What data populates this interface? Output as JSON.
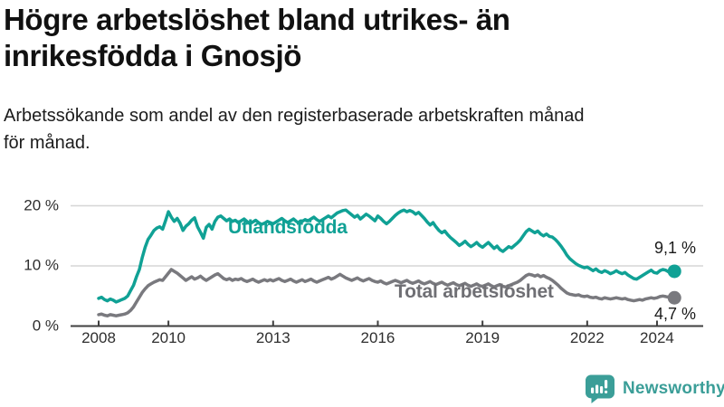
{
  "header": {
    "title": "Högre arbetslöshet bland utrikes- än\ninrikesfödda i Gnosjö",
    "subtitle": "Arbetssökande som andel av den registerbaserade arbetskraften månad\nför månad."
  },
  "chart_data": {
    "type": "line",
    "x_start_year": 2008,
    "x_step_months": 1,
    "x_tick_years": [
      2008,
      2010,
      2013,
      2016,
      2019,
      2022,
      2024
    ],
    "x_tick_labels": [
      "2008",
      "2010",
      "2013",
      "2016",
      "2019",
      "2022",
      "2024"
    ],
    "y_ticks": [
      {
        "value": 0,
        "label": "0 %"
      },
      {
        "value": 10,
        "label": "10 %"
      },
      {
        "value": 20,
        "label": "20 %"
      }
    ],
    "ylim": [
      0,
      21
    ],
    "grid": "horizontal",
    "colors": {
      "grid": "#d6d6d6",
      "axis": "#3f3f3f",
      "tick_text": "#2e2e2e",
      "value_text": "#1a1a1a"
    },
    "series": [
      {
        "name": "Utlandsfödda",
        "color": "#10a195",
        "label_color": "#10a195",
        "end_label": "9,1 %",
        "end_value": 9.1,
        "values": [
          4.6,
          4.8,
          4.4,
          4.2,
          4.5,
          4.3,
          4.0,
          4.2,
          4.4,
          4.6,
          5.0,
          5.9,
          6.8,
          8.2,
          9.4,
          11.4,
          13.1,
          14.4,
          15.1,
          15.9,
          16.3,
          16.5,
          16.1,
          17.5,
          19.0,
          18.1,
          17.4,
          17.9,
          17.1,
          15.9,
          16.6,
          17.0,
          17.6,
          18.0,
          16.5,
          15.6,
          14.6,
          16.4,
          16.9,
          16.1,
          17.4,
          18.1,
          18.3,
          17.9,
          17.5,
          17.8,
          17.4,
          17.6,
          17.2,
          17.5,
          17.8,
          17.4,
          17.0,
          17.3,
          17.6,
          17.2,
          16.9,
          17.1,
          17.4,
          17.2,
          17.0,
          17.3,
          17.6,
          17.9,
          17.5,
          17.2,
          17.5,
          17.8,
          17.4,
          17.1,
          17.4,
          17.7,
          17.5,
          17.8,
          18.1,
          17.7,
          17.4,
          17.7,
          18.0,
          18.3,
          18.0,
          18.4,
          18.8,
          19.0,
          19.2,
          19.3,
          18.9,
          18.5,
          18.1,
          18.4,
          17.8,
          18.2,
          18.6,
          18.3,
          17.9,
          17.5,
          18.3,
          17.9,
          17.4,
          17.0,
          17.4,
          17.9,
          18.4,
          18.8,
          19.1,
          19.3,
          19.0,
          19.2,
          19.0,
          18.6,
          18.9,
          18.4,
          17.9,
          17.3,
          16.8,
          17.2,
          16.5,
          15.9,
          15.5,
          15.8,
          15.2,
          14.7,
          14.3,
          13.9,
          13.4,
          13.7,
          14.1,
          13.6,
          13.2,
          13.5,
          13.9,
          13.4,
          13.1,
          13.5,
          13.9,
          13.4,
          12.9,
          13.3,
          12.7,
          12.4,
          12.8,
          13.2,
          13.0,
          13.4,
          13.8,
          14.3,
          15.0,
          15.7,
          16.1,
          15.8,
          15.5,
          15.8,
          15.3,
          15.0,
          15.3,
          14.9,
          14.8,
          14.4,
          13.9,
          13.3,
          12.6,
          11.8,
          11.2,
          10.8,
          10.4,
          10.1,
          9.9,
          9.7,
          9.8,
          9.5,
          9.2,
          9.5,
          9.1,
          8.9,
          9.2,
          9.0,
          8.7,
          8.9,
          9.2,
          8.9,
          8.7,
          8.9,
          8.5,
          8.2,
          7.9,
          7.8,
          8.1,
          8.4,
          8.7,
          9.0,
          9.3,
          8.9,
          8.8,
          9.2,
          9.4,
          9.3,
          9.0,
          8.9,
          9.1
        ]
      },
      {
        "name": "Total arbetslöshet",
        "color": "#79797e",
        "label_color": "#6f6f74",
        "end_label": "4,7 %",
        "end_value": 4.7,
        "values": [
          1.9,
          2.0,
          1.8,
          1.7,
          1.9,
          1.8,
          1.7,
          1.8,
          1.9,
          2.0,
          2.2,
          2.6,
          3.2,
          4.0,
          4.8,
          5.6,
          6.2,
          6.7,
          7.0,
          7.3,
          7.5,
          7.7,
          7.6,
          8.2,
          8.8,
          9.4,
          9.1,
          8.8,
          8.4,
          8.0,
          7.6,
          7.9,
          8.2,
          7.8,
          8.0,
          8.3,
          7.9,
          7.6,
          7.9,
          8.2,
          8.5,
          8.7,
          8.3,
          7.9,
          7.7,
          7.9,
          7.6,
          7.8,
          7.7,
          7.9,
          7.6,
          7.4,
          7.6,
          7.8,
          7.5,
          7.3,
          7.5,
          7.7,
          7.5,
          7.7,
          7.5,
          7.7,
          7.9,
          7.6,
          7.4,
          7.6,
          7.8,
          7.5,
          7.3,
          7.5,
          7.7,
          7.4,
          7.6,
          7.8,
          7.5,
          7.3,
          7.5,
          7.7,
          7.9,
          8.1,
          7.8,
          8.0,
          8.3,
          8.6,
          8.3,
          8.0,
          7.8,
          7.6,
          7.8,
          8.0,
          7.7,
          7.5,
          7.7,
          7.9,
          7.6,
          7.4,
          7.3,
          7.5,
          7.2,
          7.0,
          7.2,
          7.4,
          7.6,
          7.4,
          7.2,
          7.4,
          7.6,
          7.3,
          7.1,
          7.3,
          7.5,
          7.2,
          7.0,
          7.2,
          7.4,
          7.1,
          6.9,
          7.1,
          7.3,
          7.0,
          6.8,
          7.0,
          7.2,
          6.9,
          6.7,
          6.9,
          7.1,
          6.8,
          6.6,
          6.8,
          7.0,
          6.7,
          6.6,
          6.8,
          7.0,
          6.7,
          6.5,
          6.7,
          6.9,
          6.6,
          6.5,
          6.7,
          6.9,
          7.1,
          7.3,
          7.6,
          8.0,
          8.4,
          8.6,
          8.5,
          8.3,
          8.5,
          8.2,
          8.4,
          8.1,
          7.9,
          7.6,
          7.2,
          6.8,
          6.3,
          5.9,
          5.5,
          5.3,
          5.2,
          5.1,
          5.2,
          5.0,
          4.9,
          5.0,
          4.8,
          4.7,
          4.8,
          4.6,
          4.5,
          4.7,
          4.6,
          4.5,
          4.6,
          4.7,
          4.6,
          4.5,
          4.6,
          4.4,
          4.3,
          4.2,
          4.3,
          4.4,
          4.3,
          4.5,
          4.6,
          4.7,
          4.6,
          4.7,
          4.9,
          5.0,
          4.9,
          4.8,
          4.7,
          4.7
        ]
      }
    ]
  },
  "footer": {
    "brand": "Newsworthy",
    "brand_color": "#3b9e98"
  }
}
